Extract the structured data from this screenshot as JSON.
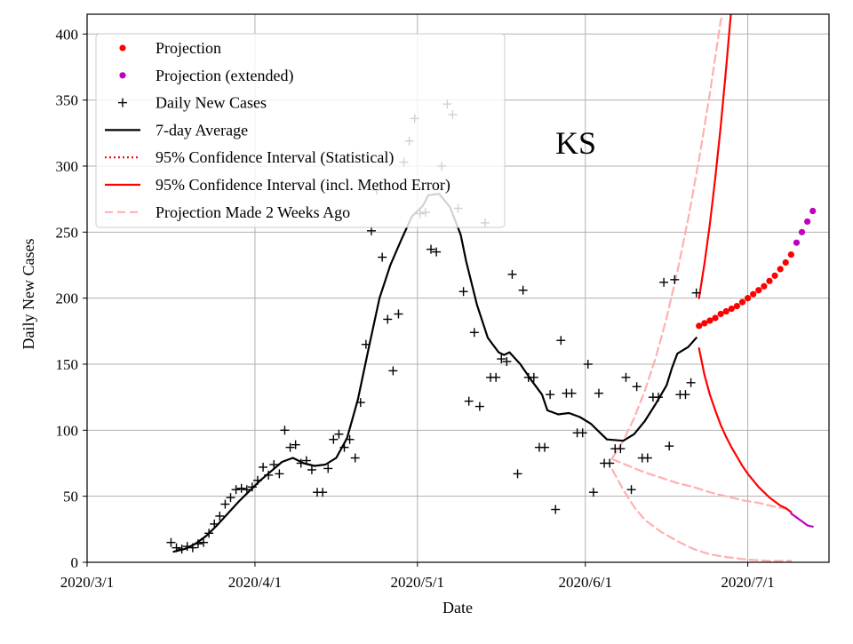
{
  "chart_data": {
    "type": "scatter",
    "title": "KS",
    "xlabel": "Date",
    "ylabel": "Daily New Cases",
    "grid": true,
    "legend_position": "top-left",
    "x_units": "days since 2020/3/1",
    "xlim": [
      0,
      137
    ],
    "ylim": [
      0,
      415
    ],
    "xticks": [
      {
        "day": 0,
        "label": "2020/3/1"
      },
      {
        "day": 31,
        "label": "2020/4/1"
      },
      {
        "day": 61,
        "label": "2020/5/1"
      },
      {
        "day": 92,
        "label": "2020/6/1"
      },
      {
        "day": 122,
        "label": "2020/7/1"
      }
    ],
    "yticks": [
      {
        "value": 0,
        "label": "0"
      },
      {
        "value": 50,
        "label": "50"
      },
      {
        "value": 100,
        "label": "100"
      },
      {
        "value": 150,
        "label": "150"
      },
      {
        "value": 200,
        "label": "200"
      },
      {
        "value": 250,
        "label": "250"
      },
      {
        "value": 300,
        "label": "300"
      },
      {
        "value": 350,
        "label": "350"
      },
      {
        "value": 400,
        "label": "400"
      }
    ],
    "legend": [
      {
        "label": "Projection",
        "style": "dot",
        "color": "#ff0000"
      },
      {
        "label": "Projection (extended)",
        "style": "dot",
        "color": "#bf00bf"
      },
      {
        "label": "Daily New Cases",
        "style": "plus",
        "color": "#000000"
      },
      {
        "label": "7-day Average",
        "style": "line",
        "color": "#000000"
      },
      {
        "label": "95% Confidence Interval (Statistical)",
        "style": "dotted",
        "color": "#ff0000"
      },
      {
        "label": "95% Confidence Interval (incl. Method Error)",
        "style": "line",
        "color": "#ff0000"
      },
      {
        "label": "Projection Made 2 Weeks Ago",
        "style": "dashed",
        "color": "#ffb0b0"
      }
    ],
    "series": [
      {
        "name": "Daily New Cases",
        "color": "#000000",
        "points": [
          [
            15.5,
            15
          ],
          [
            16.5,
            11
          ],
          [
            17.5,
            10
          ],
          [
            18.5,
            12
          ],
          [
            19.5,
            11
          ],
          [
            20.5,
            14
          ],
          [
            21.5,
            15
          ],
          [
            22.5,
            22
          ],
          [
            23.5,
            29
          ],
          [
            24.5,
            35
          ],
          [
            25.5,
            44
          ],
          [
            26.5,
            49
          ],
          [
            27.5,
            55
          ],
          [
            28.5,
            56
          ],
          [
            29.5,
            55
          ],
          [
            30.5,
            57
          ],
          [
            31.5,
            62
          ],
          [
            32.5,
            72
          ],
          [
            33.5,
            66
          ],
          [
            34.5,
            74
          ],
          [
            35.5,
            67
          ],
          [
            36.5,
            100
          ],
          [
            37.5,
            87
          ],
          [
            38.5,
            89
          ],
          [
            39.5,
            75
          ],
          [
            40.5,
            77
          ],
          [
            41.5,
            70
          ],
          [
            42.5,
            53
          ],
          [
            43.5,
            53
          ],
          [
            44.5,
            71
          ],
          [
            45.5,
            93
          ],
          [
            46.5,
            97
          ],
          [
            47.5,
            87
          ],
          [
            48.5,
            93
          ],
          [
            49.5,
            79
          ],
          [
            50.5,
            121
          ],
          [
            51.5,
            165
          ],
          [
            52.5,
            251
          ],
          [
            53.5,
            282
          ],
          [
            54.5,
            231
          ],
          [
            55.5,
            184
          ],
          [
            56.5,
            145
          ],
          [
            57.5,
            188
          ],
          [
            58.5,
            303
          ],
          [
            59.5,
            319
          ],
          [
            60.5,
            336
          ],
          [
            61.5,
            264
          ],
          [
            62.5,
            265
          ],
          [
            63.5,
            237
          ],
          [
            64.5,
            235
          ],
          [
            65.5,
            300
          ],
          [
            66.5,
            347
          ],
          [
            67.5,
            339
          ],
          [
            68.5,
            268
          ],
          [
            69.5,
            205
          ],
          [
            70.5,
            122
          ],
          [
            71.5,
            174
          ],
          [
            72.5,
            118
          ],
          [
            73.5,
            257
          ],
          [
            74.5,
            140
          ],
          [
            75.5,
            140
          ],
          [
            76.5,
            154
          ],
          [
            77.5,
            152
          ],
          [
            78.5,
            218
          ],
          [
            79.5,
            67
          ],
          [
            80.5,
            206
          ],
          [
            81.5,
            140
          ],
          [
            82.5,
            140
          ],
          [
            83.5,
            87
          ],
          [
            84.5,
            87
          ],
          [
            85.5,
            127
          ],
          [
            86.5,
            40
          ],
          [
            87.5,
            168
          ],
          [
            88.5,
            128
          ],
          [
            89.5,
            128
          ],
          [
            90.5,
            98
          ],
          [
            91.5,
            98
          ],
          [
            92.5,
            150
          ],
          [
            93.5,
            53
          ],
          [
            94.5,
            128
          ],
          [
            95.5,
            75
          ],
          [
            96.5,
            75
          ],
          [
            97.5,
            86
          ],
          [
            98.5,
            86
          ],
          [
            99.5,
            140
          ],
          [
            100.5,
            55
          ],
          [
            101.5,
            133
          ],
          [
            102.5,
            79
          ],
          [
            103.5,
            79
          ],
          [
            104.5,
            125
          ],
          [
            105.5,
            125
          ],
          [
            106.5,
            212
          ],
          [
            107.5,
            88
          ],
          [
            108.5,
            214
          ],
          [
            109.5,
            127
          ],
          [
            110.5,
            127
          ],
          [
            111.5,
            136
          ],
          [
            112.5,
            204
          ]
        ]
      },
      {
        "name": "7-day Average",
        "color": "#000000",
        "points": [
          [
            16,
            8
          ],
          [
            18,
            10
          ],
          [
            20,
            14
          ],
          [
            22,
            20
          ],
          [
            24,
            28
          ],
          [
            26,
            37
          ],
          [
            28,
            46
          ],
          [
            30,
            54
          ],
          [
            32,
            62
          ],
          [
            34,
            69
          ],
          [
            36,
            76
          ],
          [
            38,
            79
          ],
          [
            40,
            75
          ],
          [
            42,
            73
          ],
          [
            44,
            74
          ],
          [
            46,
            79
          ],
          [
            48,
            94
          ],
          [
            50,
            123
          ],
          [
            52,
            162
          ],
          [
            54,
            200
          ],
          [
            56,
            225
          ],
          [
            58,
            244
          ],
          [
            60,
            262
          ],
          [
            62,
            270
          ],
          [
            63,
            278
          ],
          [
            65,
            279
          ],
          [
            67,
            269
          ],
          [
            69,
            248
          ],
          [
            70,
            228
          ],
          [
            72,
            195
          ],
          [
            74,
            170
          ],
          [
            76,
            159
          ],
          [
            77,
            157
          ],
          [
            78,
            159
          ],
          [
            80,
            150
          ],
          [
            82,
            138
          ],
          [
            84,
            127
          ],
          [
            85,
            115
          ],
          [
            87,
            112
          ],
          [
            89,
            113
          ],
          [
            91,
            110
          ],
          [
            93,
            105
          ],
          [
            95,
            97
          ],
          [
            96,
            93
          ],
          [
            99,
            92
          ],
          [
            101,
            97
          ],
          [
            103,
            107
          ],
          [
            105,
            120
          ],
          [
            107,
            134
          ],
          [
            108,
            147
          ],
          [
            109,
            158
          ],
          [
            111,
            163
          ],
          [
            112.5,
            170
          ]
        ]
      },
      {
        "name": "Projection",
        "color": "#ff0000",
        "points": [
          [
            113,
            179
          ],
          [
            114,
            181
          ],
          [
            115,
            183
          ],
          [
            116,
            185
          ],
          [
            117,
            188
          ],
          [
            118,
            190
          ],
          [
            119,
            192
          ],
          [
            120,
            194
          ],
          [
            121,
            197
          ],
          [
            122,
            200
          ],
          [
            123,
            203
          ],
          [
            124,
            206
          ],
          [
            125,
            209
          ],
          [
            126,
            213
          ],
          [
            127,
            217
          ],
          [
            128,
            222
          ],
          [
            129,
            227
          ],
          [
            130,
            233
          ]
        ]
      },
      {
        "name": "Projection (extended)",
        "color": "#bf00bf",
        "points": [
          [
            131,
            242
          ],
          [
            132,
            250
          ],
          [
            133,
            258
          ],
          [
            134,
            266
          ]
        ]
      },
      {
        "name": "95% CI upper (incl. Method Error)",
        "color": "#ff0000",
        "points": [
          [
            113,
            200
          ],
          [
            114,
            226
          ],
          [
            115,
            256
          ],
          [
            116,
            291
          ],
          [
            117,
            330
          ],
          [
            118,
            374
          ],
          [
            119,
            421
          ]
        ]
      },
      {
        "name": "95% CI lower (incl. Method Error)",
        "color": "#ff0000",
        "points": [
          [
            113,
            162
          ],
          [
            114,
            142
          ],
          [
            115,
            127
          ],
          [
            116,
            115
          ],
          [
            117,
            104
          ],
          [
            118,
            95
          ],
          [
            119,
            87
          ],
          [
            120,
            80
          ],
          [
            121,
            73
          ],
          [
            122,
            67
          ],
          [
            123,
            62
          ],
          [
            124,
            57
          ],
          [
            125,
            53
          ],
          [
            126,
            49
          ],
          [
            127,
            46
          ],
          [
            128,
            43
          ],
          [
            129,
            41
          ],
          [
            130,
            38
          ]
        ]
      },
      {
        "name": "95% CI lower (extended)",
        "color": "#bf00bf",
        "points": [
          [
            130,
            37
          ],
          [
            131,
            34
          ],
          [
            132,
            31
          ],
          [
            133,
            28
          ],
          [
            134,
            27
          ]
        ]
      },
      {
        "name": "Projection Made 2 Weeks Ago (upper)",
        "color": "#ffb0b0",
        "points": [
          [
            97,
            79
          ],
          [
            99,
            92
          ],
          [
            101,
            109
          ],
          [
            103,
            130
          ],
          [
            105,
            155
          ],
          [
            107,
            185
          ],
          [
            109,
            220
          ],
          [
            111,
            260
          ],
          [
            113,
            305
          ],
          [
            115,
            355
          ],
          [
            117,
            410
          ],
          [
            118,
            421
          ]
        ]
      },
      {
        "name": "Projection Made 2 Weeks Ago (middle)",
        "color": "#ffb0b0",
        "points": [
          [
            97,
            78
          ],
          [
            100,
            73
          ],
          [
            103,
            68
          ],
          [
            106,
            64
          ],
          [
            109,
            60
          ],
          [
            112,
            57
          ],
          [
            115,
            53
          ],
          [
            118,
            50
          ],
          [
            121,
            47
          ],
          [
            124,
            45
          ],
          [
            127,
            42
          ],
          [
            130,
            40
          ]
        ]
      },
      {
        "name": "Projection Made 2 Weeks Ago (lower)",
        "color": "#ffb0b0",
        "points": [
          [
            97,
            70
          ],
          [
            99,
            55
          ],
          [
            101,
            42
          ],
          [
            103,
            32
          ],
          [
            106,
            23
          ],
          [
            109,
            16
          ],
          [
            112,
            10
          ],
          [
            115,
            6
          ],
          [
            118,
            4
          ],
          [
            122,
            2
          ],
          [
            126,
            1
          ],
          [
            130,
            1
          ]
        ]
      }
    ]
  }
}
